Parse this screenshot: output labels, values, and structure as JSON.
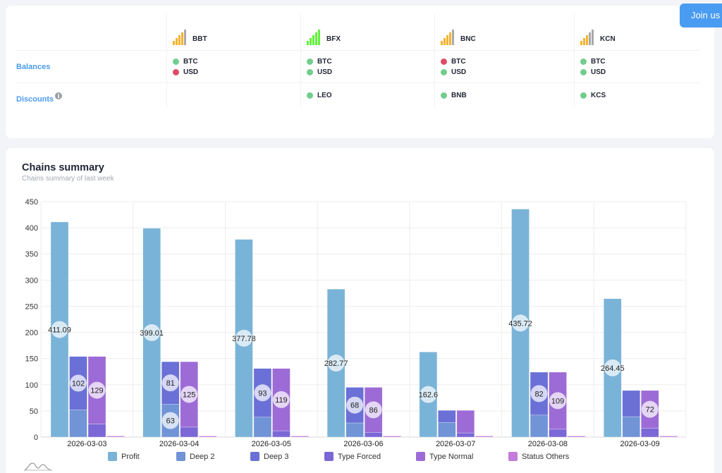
{
  "header": {
    "join_label": "Join us"
  },
  "exchanges": {
    "row_labels": {
      "balances": "Balances",
      "discounts": "Discounts",
      "discounts_info_icon": "info-icon"
    },
    "columns": [
      {
        "name": "BBT",
        "signal_strength": 4,
        "signal_max": 5,
        "signal_color": "#f5b32f",
        "balances": [
          {
            "label": "BTC",
            "status": "ok"
          },
          {
            "label": "USD",
            "status": "error"
          }
        ],
        "discounts": []
      },
      {
        "name": "BFX",
        "signal_strength": 5,
        "signal_max": 5,
        "signal_color": "#5ff23a",
        "balances": [
          {
            "label": "BTC",
            "status": "ok"
          },
          {
            "label": "USD",
            "status": "ok"
          }
        ],
        "discounts": [
          {
            "label": "LEO",
            "status": "ok"
          }
        ]
      },
      {
        "name": "BNC",
        "signal_strength": 4,
        "signal_max": 5,
        "signal_color": "#f5b32f",
        "balances": [
          {
            "label": "BTC",
            "status": "error"
          },
          {
            "label": "USD",
            "status": "ok"
          }
        ],
        "discounts": [
          {
            "label": "BNB",
            "status": "ok"
          }
        ]
      },
      {
        "name": "KCN",
        "signal_strength": 3,
        "signal_max": 5,
        "signal_color": "#f5b32f",
        "balances": [
          {
            "label": "BTC",
            "status": "ok"
          },
          {
            "label": "USD",
            "status": "ok"
          }
        ],
        "discounts": [
          {
            "label": "KCS",
            "status": "ok"
          }
        ]
      }
    ],
    "status_colors": {
      "ok": "#72cd8d",
      "error": "#e04b67",
      "signal_off": "#a9a9a9"
    }
  },
  "chart_card": {
    "title": "Chains summary",
    "subtitle": "Chains summary of last week"
  },
  "chart_data": {
    "type": "bar",
    "title": "Chains summary",
    "subtitle": "Chains summary of last week",
    "xlabel": "",
    "ylabel": "",
    "ylim": [
      0,
      450
    ],
    "yticks": [
      0,
      50,
      100,
      150,
      200,
      250,
      300,
      350,
      400,
      450
    ],
    "grid": true,
    "legend_position": "bottom",
    "categories": [
      "2026-03-03",
      "2026-03-04",
      "2026-03-05",
      "2026-03-06",
      "2026-03-07",
      "2026-03-08",
      "2026-03-09"
    ],
    "series": [
      {
        "name": "Profit",
        "stack": "profit",
        "color": "#7ab3d8",
        "values": [
          411.09,
          399.01,
          377.78,
          282.77,
          162.6,
          435.72,
          264.45
        ],
        "labels": [
          "411.09",
          "399.01",
          "377.78",
          "282.77",
          "162.6",
          "435.72",
          "264.45"
        ]
      },
      {
        "name": "Deep 2",
        "stack": "deep",
        "color": "#7094d6",
        "values": [
          52,
          63,
          38,
          27,
          28,
          42,
          39
        ],
        "labels": [
          "",
          "63",
          "",
          "",
          "",
          "",
          ""
        ]
      },
      {
        "name": "Deep 3",
        "stack": "deep",
        "color": "#6a70d6",
        "values": [
          102,
          81,
          93,
          68,
          23,
          82,
          50
        ],
        "labels": [
          "102",
          "81",
          "93",
          "68",
          "",
          "82",
          ""
        ]
      },
      {
        "name": "Type Forced",
        "stack": "type",
        "color": "#7b67d6",
        "values": [
          25,
          19,
          12,
          9,
          8,
          15,
          17
        ],
        "labels": [
          "",
          "",
          "",
          "",
          "",
          "",
          ""
        ]
      },
      {
        "name": "Type Normal",
        "stack": "type",
        "color": "#9d6bd6",
        "values": [
          129,
          125,
          119,
          86,
          43,
          109,
          72
        ],
        "labels": [
          "129",
          "125",
          "119",
          "86",
          "",
          "109",
          "72"
        ]
      },
      {
        "name": "Status Others",
        "stack": "status",
        "color": "#c47bdb",
        "values": [
          1,
          1,
          1,
          1,
          1,
          1,
          1
        ],
        "labels": [
          "",
          "",
          "",
          "",
          "",
          "",
          ""
        ]
      }
    ]
  }
}
